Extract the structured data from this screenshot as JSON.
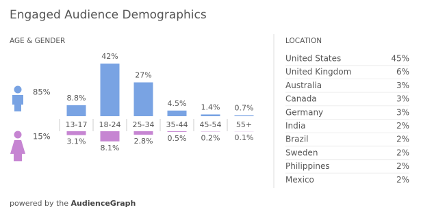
{
  "title": "Engaged Audience Demographics",
  "chart_data": {
    "type": "bar",
    "title": "AGE & GENDER",
    "categories": [
      "13-17",
      "18-24",
      "25-34",
      "35-44",
      "45-54",
      "55+"
    ],
    "series": [
      {
        "share": "85%",
        "color": "#79a3e3",
        "values": [
          8.8,
          42,
          27,
          4.5,
          1.4,
          0.7
        ],
        "value_labels": [
          "8.8%",
          "42%",
          "27%",
          "4.5%",
          "1.4%",
          "0.7%"
        ]
      },
      {
        "share": "15%",
        "color": "#c685d2",
        "values": [
          3.1,
          8.1,
          2.8,
          0.5,
          0.2,
          0.1
        ],
        "value_labels": [
          "3.1%",
          "8.1%",
          "2.8%",
          "0.5%",
          "0.2%",
          "0.1%"
        ]
      }
    ]
  },
  "location": {
    "title": "LOCATION",
    "rows": [
      [
        "United States",
        "45%"
      ],
      [
        "United Kingdom",
        "6%"
      ],
      [
        "Australia",
        "3%"
      ],
      [
        "Canada",
        "3%"
      ],
      [
        "Germany",
        "3%"
      ],
      [
        "India",
        "2%"
      ],
      [
        "Brazil",
        "2%"
      ],
      [
        "Sweden",
        "2%"
      ],
      [
        "Philippines",
        "2%"
      ],
      [
        "Mexico",
        "2%"
      ]
    ]
  },
  "footer": {
    "prefix": "powered by the",
    "brand": "AudienceGraph"
  }
}
